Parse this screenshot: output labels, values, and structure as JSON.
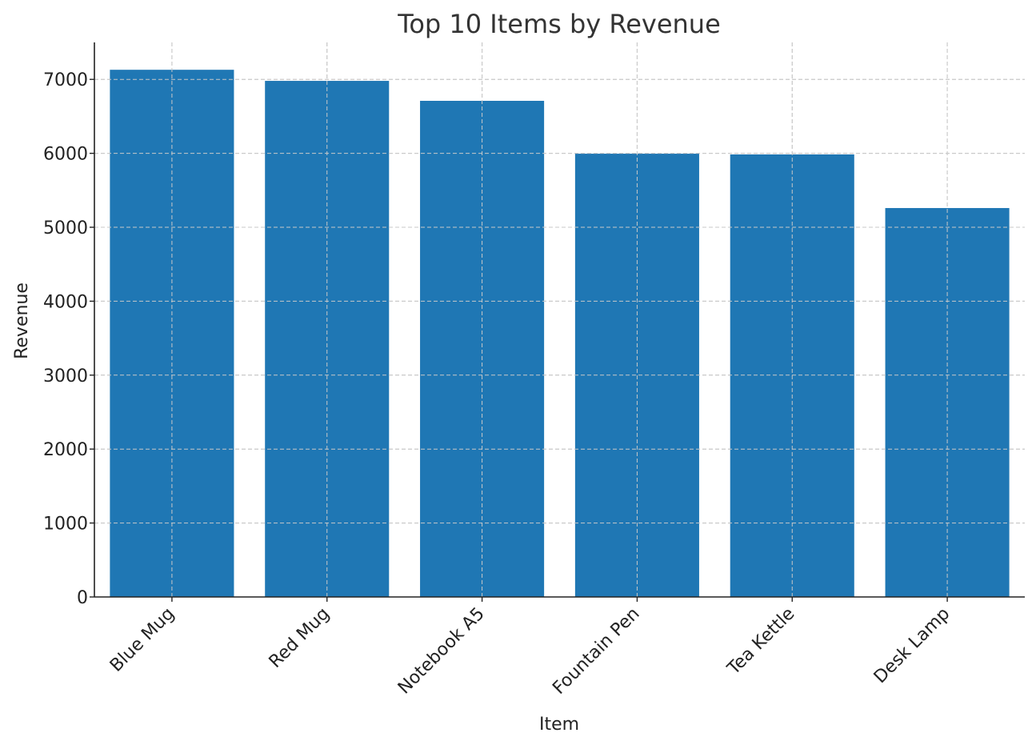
{
  "chart_data": {
    "type": "bar",
    "title": "Top 10 Items by Revenue",
    "xlabel": "Item",
    "ylabel": "Revenue",
    "categories": [
      "Blue Mug",
      "Red Mug",
      "Notebook A5",
      "Fountain Pen",
      "Tea Kettle",
      "Desk Lamp"
    ],
    "values": [
      7130,
      6980,
      6710,
      5995,
      5985,
      5260
    ],
    "ylim": [
      0,
      7500
    ],
    "yticks": [
      0,
      1000,
      2000,
      3000,
      4000,
      5000,
      6000,
      7000
    ],
    "grid": true,
    "bar_color": "#1f77b4"
  }
}
